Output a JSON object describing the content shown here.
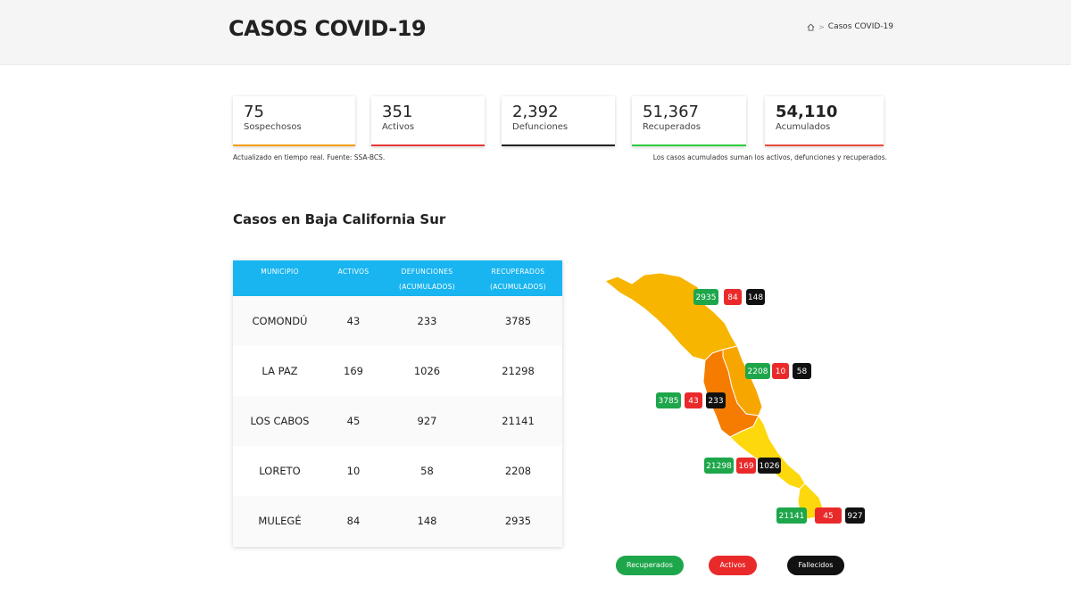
{
  "header": {
    "title": "CASOS COVID-19",
    "breadcrumb_current": "Casos COVID-19",
    "breadcrumb_sep": ">"
  },
  "stats": [
    {
      "value": "75",
      "label": "Sospechosos",
      "color": "#f39c12"
    },
    {
      "value": "351",
      "label": "Activos",
      "color": "#e53935"
    },
    {
      "value": "2,392",
      "label": "Defunciones",
      "color": "#222222"
    },
    {
      "value": "51,367",
      "label": "Recuperados",
      "color": "#2ecc40"
    },
    {
      "value": "54,110",
      "label": "Acumulados",
      "color": "#e74c3c"
    }
  ],
  "notes": {
    "left": "Actualizado en tiempo real. Fuente: SSA-BCS.",
    "right": "Los casos acumulados suman los activos, defunciones y recuperados."
  },
  "section_title": "Casos en Baja California Sur",
  "table": {
    "headers": {
      "municipio": "MUNICIPIO",
      "activos": "ACTIVOS",
      "defunciones_1": "DEFUNCIONES",
      "defunciones_2": "(ACUMULADOS)",
      "recuperados_1": "RECUPERADOS",
      "recuperados_2": "(ACUMULADOS)"
    },
    "rows": [
      {
        "municipio": "COMONDÚ",
        "activos": "43",
        "defunciones": "233",
        "recuperados": "3785"
      },
      {
        "municipio": "LA PAZ",
        "activos": "169",
        "defunciones": "1026",
        "recuperados": "21298"
      },
      {
        "municipio": "LOS CABOS",
        "activos": "45",
        "defunciones": "927",
        "recuperados": "21141"
      },
      {
        "municipio": "LORETO",
        "activos": "10",
        "defunciones": "58",
        "recuperados": "2208"
      },
      {
        "municipio": "MULEGÉ",
        "activos": "84",
        "defunciones": "148",
        "recuperados": "2935"
      }
    ]
  },
  "map": {
    "badges": {
      "mulege": {
        "rec": "2935",
        "act": "84",
        "def": "148"
      },
      "loreto": {
        "rec": "2208",
        "act": "10",
        "def": "58"
      },
      "comondu": {
        "rec": "3785",
        "act": "43",
        "def": "233"
      },
      "lapaz": {
        "rec": "21298",
        "act": "169",
        "def": "1026"
      },
      "loscabos": {
        "rec": "21141",
        "act": "45",
        "def": "927"
      }
    },
    "colors": {
      "mulege": "#f7b500",
      "loreto": "#f7a600",
      "comondu": "#f57c00",
      "lapaz": "#fdd80d",
      "loscabos": "#fdd80d"
    }
  },
  "legend": {
    "recuperados": "Recuperados",
    "activos": "Activos",
    "fallecidos": "Fallecidos"
  }
}
